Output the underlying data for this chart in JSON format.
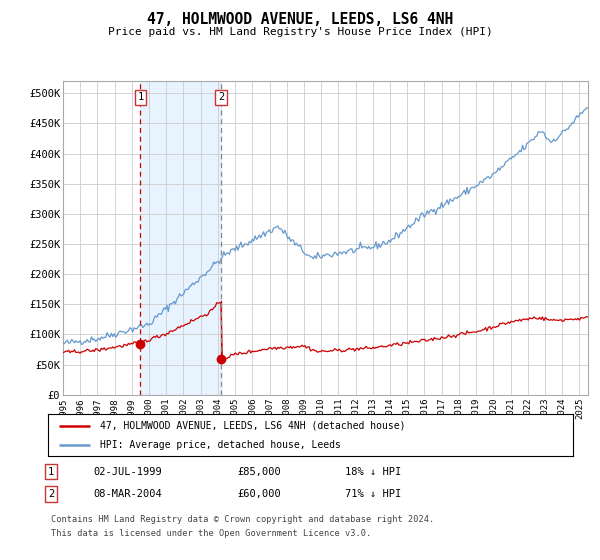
{
  "title": "47, HOLMWOOD AVENUE, LEEDS, LS6 4NH",
  "subtitle": "Price paid vs. HM Land Registry's House Price Index (HPI)",
  "hpi_color": "#6699cc",
  "price_color": "#cc0000",
  "background_color": "#ffffff",
  "grid_color": "#cccccc",
  "shade_color": "#ddeeff",
  "ylim": [
    0,
    520000
  ],
  "yticks": [
    0,
    50000,
    100000,
    150000,
    200000,
    250000,
    300000,
    350000,
    400000,
    450000,
    500000
  ],
  "sale1_x": 1999.5,
  "sale1_price": 85000,
  "sale2_x": 2004.18,
  "sale2_price": 60000,
  "legend_line1": "47, HOLMWOOD AVENUE, LEEDS, LS6 4NH (detached house)",
  "legend_line2": "HPI: Average price, detached house, Leeds",
  "table_row1": [
    "1",
    "02-JUL-1999",
    "£85,000",
    "18% ↓ HPI"
  ],
  "table_row2": [
    "2",
    "08-MAR-2004",
    "£60,000",
    "71% ↓ HPI"
  ],
  "footnote1": "Contains HM Land Registry data © Crown copyright and database right 2024.",
  "footnote2": "This data is licensed under the Open Government Licence v3.0.",
  "xmin": 1995,
  "xmax": 2025.5
}
